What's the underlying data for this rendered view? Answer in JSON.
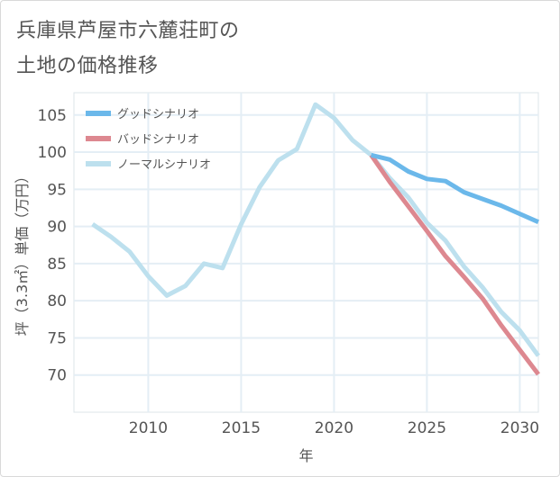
{
  "title_line1": "兵庫県芦屋市六麓荘町の",
  "title_line2": "土地の価格推移",
  "chart_data": {
    "type": "line",
    "title": "兵庫県芦屋市六麓荘町の土地の価格推移",
    "xlabel": "年",
    "ylabel": "坪（3.3㎡）単価（万円）",
    "xlim": [
      2006,
      2031
    ],
    "ylim": [
      65,
      108
    ],
    "xticks": [
      2010,
      2015,
      2020,
      2025,
      2030
    ],
    "yticks": [
      70,
      75,
      80,
      85,
      90,
      95,
      100,
      105
    ],
    "legend_position": "top-left",
    "series": [
      {
        "name": "グッドシナリオ",
        "color": "#6bb8ea",
        "x": [
          2022,
          2023,
          2024,
          2025,
          2026,
          2027,
          2028,
          2029,
          2030,
          2031
        ],
        "y": [
          99.6,
          99.0,
          97.4,
          96.4,
          96.1,
          94.6,
          93.7,
          92.8,
          91.7,
          90.6
        ]
      },
      {
        "name": "バッドシナリオ",
        "color": "#dd8890",
        "x": [
          2022,
          2023,
          2024,
          2025,
          2026,
          2027,
          2028,
          2029,
          2030,
          2031
        ],
        "y": [
          99.6,
          96.0,
          92.7,
          89.4,
          86.0,
          83.2,
          80.3,
          76.7,
          73.4,
          70.1
        ]
      },
      {
        "name": "ノーマルシナリオ",
        "color": "#bde0ee",
        "x": [
          2007,
          2008,
          2009,
          2010,
          2011,
          2012,
          2013,
          2014,
          2015,
          2016,
          2017,
          2018,
          2019,
          2020,
          2021,
          2022,
          2023,
          2024,
          2025,
          2026,
          2027,
          2028,
          2029,
          2030,
          2031
        ],
        "y": [
          90.3,
          88.6,
          86.6,
          83.3,
          80.7,
          82.0,
          85.0,
          84.4,
          90.3,
          95.3,
          98.9,
          100.4,
          106.4,
          104.6,
          101.6,
          99.6,
          96.5,
          93.9,
          90.5,
          88.1,
          84.6,
          81.8,
          78.5,
          76.0,
          72.6
        ]
      }
    ]
  }
}
